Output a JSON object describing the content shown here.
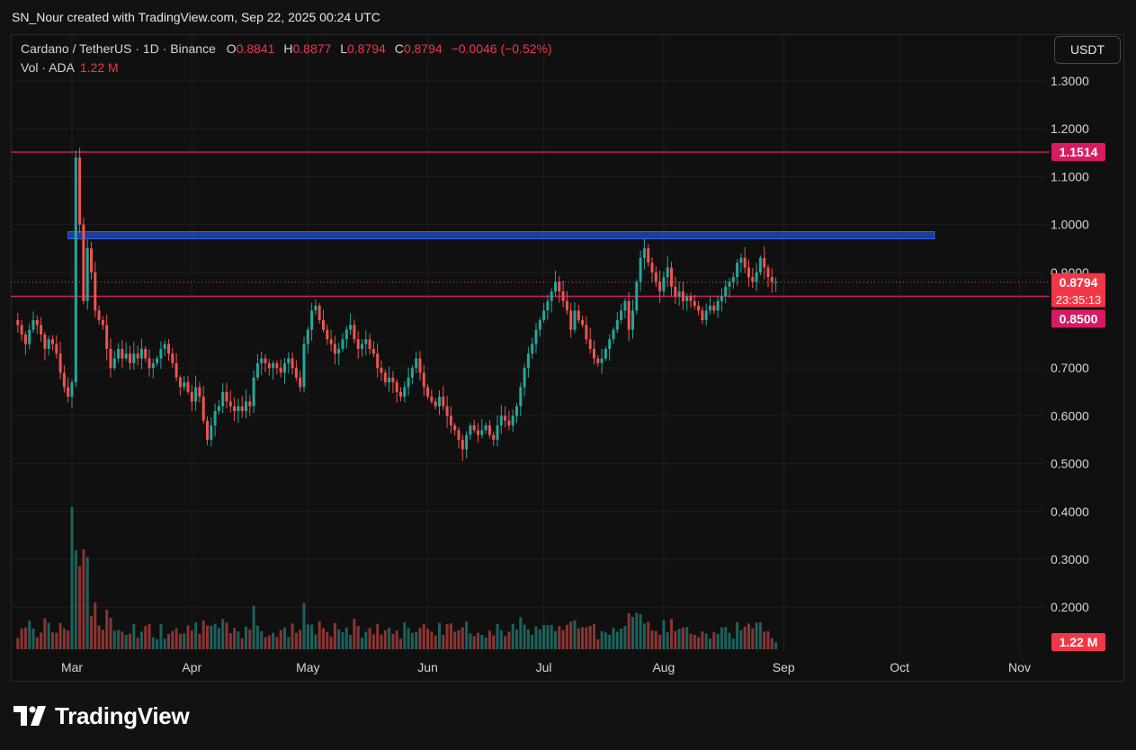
{
  "header": {
    "credit": "SN_Nour created with TradingView.com, Sep 22, 2025 00:24 UTC"
  },
  "legend": {
    "symbol": "Cardano / TetherUS · 1D · Binance",
    "o_label": "O",
    "o": "0.8841",
    "h_label": "H",
    "h": "0.8877",
    "l_label": "L",
    "l": "0.8794",
    "c_label": "C",
    "c": "0.8794",
    "change": "−0.0046 (−0.52%)",
    "vol_label": "Vol · ADA",
    "vol_value": "1.22 M"
  },
  "currency_button": "USDT",
  "footer": {
    "brand": "TradingView"
  },
  "colors": {
    "bg": "#101010",
    "up": "#26a69a",
    "down": "#ef5350",
    "grid": "#1e1e1e",
    "level_line": "#d81b60",
    "zone": "#2962ff"
  },
  "chart_data": {
    "type": "candlestick",
    "title": "Cardano / TetherUS · 1D · Binance",
    "y_axis": {
      "ticks": [
        "1.3000",
        "1.2000",
        "1.1000",
        "1.0000",
        "0.9000",
        "0.7000",
        "0.6000",
        "0.5000",
        "0.4000",
        "0.3000",
        "0.2000"
      ]
    },
    "x_axis": {
      "ticks": [
        "Mar",
        "Apr",
        "May",
        "Jun",
        "Jul",
        "Aug",
        "Sep",
        "Oct",
        "Nov"
      ]
    },
    "ylim": [
      0.1,
      1.35
    ],
    "horizontal_levels": [
      {
        "value": 1.1514,
        "label": "1.1514"
      },
      {
        "value": 0.85,
        "label": "0.8500"
      }
    ],
    "resistance_zone": {
      "from": 0.97,
      "to": 0.985,
      "start": "2025-02-28",
      "end": "2025-10-10"
    },
    "last_price": {
      "value": 0.8794,
      "label": "0.8794",
      "countdown": "23:35:13"
    },
    "last_volume_label": "1.22 M",
    "series": [
      {
        "name": "ADA/USDT daily closes (approx.)",
        "start_date": "2025-02-15",
        "closes": [
          0.79,
          0.77,
          0.75,
          0.78,
          0.8,
          0.79,
          0.77,
          0.74,
          0.76,
          0.75,
          0.73,
          0.69,
          0.66,
          0.64,
          0.67,
          1.14,
          1.0,
          0.84,
          0.95,
          0.9,
          0.82,
          0.8,
          0.79,
          0.74,
          0.7,
          0.72,
          0.74,
          0.72,
          0.73,
          0.71,
          0.73,
          0.72,
          0.74,
          0.72,
          0.7,
          0.71,
          0.72,
          0.74,
          0.75,
          0.73,
          0.71,
          0.68,
          0.66,
          0.67,
          0.65,
          0.63,
          0.66,
          0.64,
          0.59,
          0.55,
          0.58,
          0.61,
          0.62,
          0.65,
          0.63,
          0.62,
          0.61,
          0.62,
          0.61,
          0.63,
          0.62,
          0.68,
          0.71,
          0.72,
          0.71,
          0.7,
          0.71,
          0.7,
          0.69,
          0.71,
          0.72,
          0.7,
          0.68,
          0.66,
          0.75,
          0.78,
          0.82,
          0.83,
          0.8,
          0.78,
          0.76,
          0.75,
          0.73,
          0.74,
          0.76,
          0.78,
          0.79,
          0.76,
          0.74,
          0.75,
          0.76,
          0.74,
          0.73,
          0.7,
          0.69,
          0.67,
          0.68,
          0.67,
          0.65,
          0.64,
          0.66,
          0.68,
          0.7,
          0.72,
          0.69,
          0.66,
          0.64,
          0.63,
          0.62,
          0.64,
          0.62,
          0.6,
          0.58,
          0.57,
          0.55,
          0.53,
          0.56,
          0.58,
          0.57,
          0.56,
          0.57,
          0.58,
          0.56,
          0.55,
          0.58,
          0.6,
          0.59,
          0.58,
          0.6,
          0.62,
          0.66,
          0.7,
          0.73,
          0.75,
          0.78,
          0.8,
          0.82,
          0.84,
          0.86,
          0.88,
          0.86,
          0.84,
          0.82,
          0.78,
          0.82,
          0.8,
          0.79,
          0.76,
          0.74,
          0.72,
          0.71,
          0.72,
          0.74,
          0.76,
          0.78,
          0.8,
          0.82,
          0.84,
          0.78,
          0.82,
          0.88,
          0.93,
          0.95,
          0.92,
          0.9,
          0.88,
          0.86,
          0.89,
          0.91,
          0.87,
          0.85,
          0.86,
          0.84,
          0.85,
          0.84,
          0.83,
          0.82,
          0.8,
          0.82,
          0.83,
          0.82,
          0.84,
          0.85,
          0.87,
          0.88,
          0.89,
          0.92,
          0.93,
          0.91,
          0.89,
          0.88,
          0.9,
          0.93,
          0.91,
          0.89,
          0.88,
          0.88
        ]
      }
    ]
  }
}
